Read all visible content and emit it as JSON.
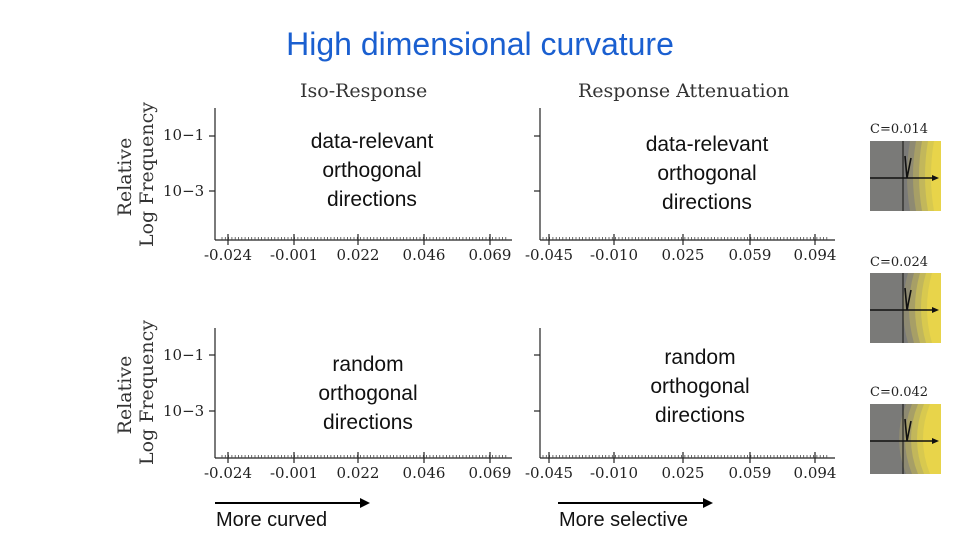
{
  "title": "High dimensional curvature",
  "ylabel_lines": [
    "Relative",
    "Log Frequency"
  ],
  "column_titles": [
    "Iso-Response",
    "Response Attenuation"
  ],
  "panel_texts": {
    "top_line1": "data-relevant",
    "top_line2": "orthogonal",
    "top_line3": "directions",
    "bottom_line1": "random",
    "bottom_line2": "orthogonal",
    "bottom_line3": "directions"
  },
  "bottom_arrows": [
    "More curved",
    "More selective"
  ],
  "curvature_insets": [
    "C=0.014",
    "C=0.024",
    "C=0.042"
  ],
  "chart_data": [
    {
      "type": "bar",
      "xlabel": "",
      "yscale": "log",
      "xticks": [
        "-0.024",
        "-0.001",
        "0.022",
        "0.046",
        "0.069"
      ],
      "yticks": [
        "10−1",
        "10−3"
      ]
    },
    {
      "type": "bar",
      "xlabel": "",
      "yscale": "log",
      "xticks": [
        "-0.045",
        "-0.010",
        "0.025",
        "0.059",
        "0.094"
      ],
      "yticks": [
        "",
        ""
      ]
    },
    {
      "type": "bar",
      "xlabel": "",
      "yscale": "log",
      "xticks": [
        "-0.024",
        "-0.001",
        "0.022",
        "0.046",
        "0.069"
      ],
      "yticks": [
        "10−1",
        "10−3"
      ]
    },
    {
      "type": "bar",
      "xlabel": "",
      "yscale": "log",
      "xticks": [
        "-0.045",
        "-0.010",
        "0.025",
        "0.059",
        "0.094"
      ],
      "yticks": [
        "",
        ""
      ]
    }
  ],
  "colors": {
    "title": "#1a5fd0",
    "inset_bg": "#7a7a78",
    "inset_yellow": "#e8d44a"
  }
}
